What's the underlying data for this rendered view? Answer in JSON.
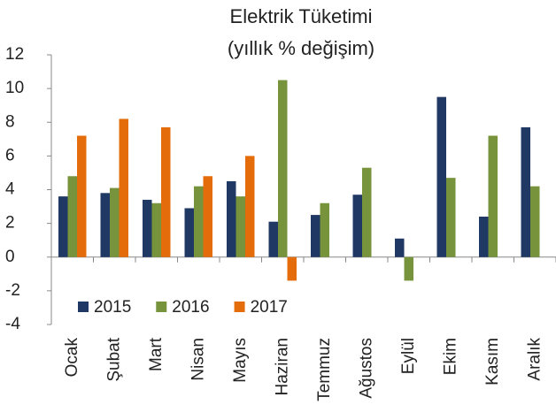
{
  "chart_data": {
    "type": "bar",
    "title": "Elektrik Tüketimi",
    "subtitle": "(yıllık % değişim)",
    "categories": [
      "Ocak",
      "Şubat",
      "Mart",
      "Nisan",
      "Mayıs",
      "Haziran",
      "Temmuz",
      "Ağustos",
      "Eylül",
      "Ekim",
      "Kasım",
      "Aralık"
    ],
    "series": [
      {
        "name": "2015",
        "color": "#1f3864",
        "values": [
          3.6,
          3.8,
          3.4,
          2.9,
          4.5,
          2.1,
          2.5,
          3.7,
          1.1,
          9.5,
          2.4,
          7.7
        ]
      },
      {
        "name": "2016",
        "color": "#77933c",
        "values": [
          4.8,
          4.1,
          3.2,
          4.2,
          3.6,
          10.5,
          3.2,
          5.3,
          -1.4,
          4.7,
          7.2,
          4.2
        ]
      },
      {
        "name": "2017",
        "color": "#e46c0a",
        "values": [
          7.2,
          8.2,
          7.7,
          4.8,
          6.0,
          -1.4,
          null,
          null,
          null,
          null,
          null,
          null
        ]
      }
    ],
    "ylim": [
      -4,
      12
    ],
    "yticks": [
      -4,
      -2,
      0,
      2,
      4,
      6,
      8,
      10,
      12
    ],
    "grid": false,
    "legend": "lower left"
  }
}
